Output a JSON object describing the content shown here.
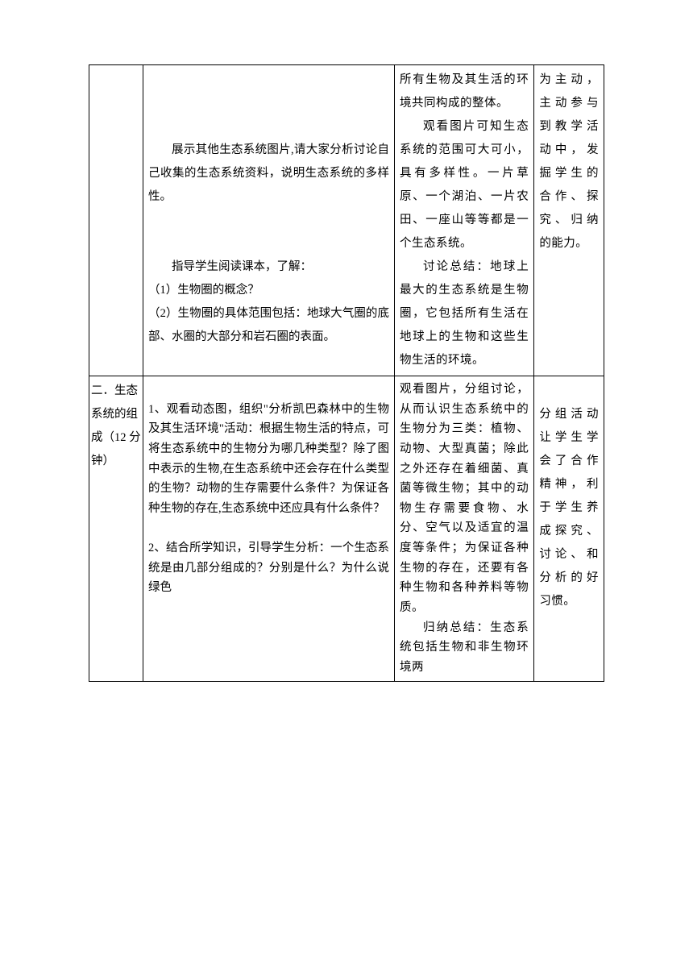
{
  "table": {
    "border_color": "#000000",
    "background_color": "#ffffff",
    "text_color": "#000000",
    "font_size_pt": 11,
    "row1": {
      "col1": "",
      "col2": {
        "p1": "展示其他生态系统图片,请大家分析讨论自己收集的生态系统资料，说明生态系统的多样性。",
        "p2": "指导学生阅读课本，了解：",
        "p3": "（1）生物圈的概念？",
        "p4": "（2）生物圈的具体范围包括：地球大气圈的底部、水圈的大部分和岩石圈的表面。"
      },
      "col3": {
        "p1": "所有生物及其生活的环境共同构成的整体。",
        "p2": "观看图片可知生态系统的范围可大可小，具有多样性。一片草原、一个湖泊、一片农田、一座山等等都是一个生态系统。",
        "p3": "讨论总结：地球上最大的生态系统是生物圈，它包括所有生活在地球上的生物和这些生物生活的环境。"
      },
      "col4": "为主动，主动参与到教学活动中，发掘学生的合作、探究、归纳的能力。"
    },
    "row2": {
      "col1": "二．生态系统的组成（12 分钟）",
      "col2": {
        "p1": "1、观看动态图，组织\"分析凯巴森林中的生物及其生活环境\"活动：根据生物生活的特点，可将生态系统中的生物分为哪几种类型？除了图中表示的生物,在生态系统中还会存在什么类型的生物？动物的生存需要什么条件？为保证各种生物的存在,生态系统中还应具有什么条件？",
        "p2": "2、结合所学知识，引导学生分析：一个生态系统是由几部分组成的？分别是什么？为什么说绿色"
      },
      "col3": {
        "p1": "观看图片，分组讨论，从而认识生态系统中的生物分为三类：植物、动物、大型真菌；除此之外还存在着细菌、真菌等微生物；其中的动物生存需要食物、水分、空气以及适宜的温度等条件；为保证各种生物的存在，还要有各种生物和各种养料等物质。",
        "p2": "归纳总结：生态系统包括生物和非生物环境两"
      },
      "col4": "分组活动让学生学会了合作精神，利于学生养成探究、讨论、和分析的好习惯。"
    }
  }
}
